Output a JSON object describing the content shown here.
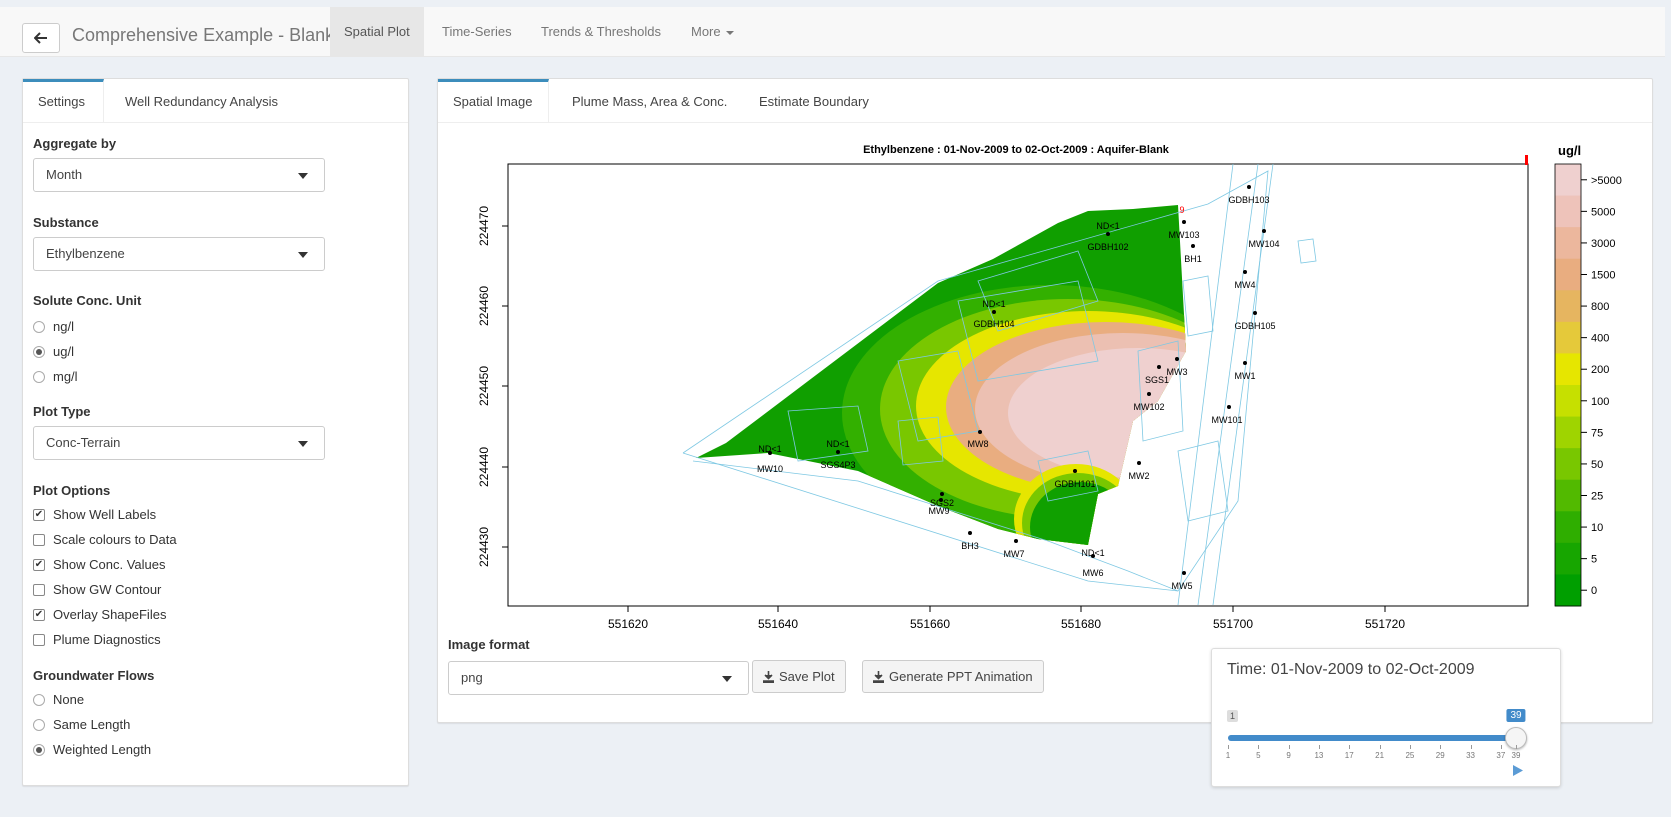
{
  "app": {
    "title": "Comprehensive Example - Blank"
  },
  "nav": {
    "tabs": [
      "Spatial Plot",
      "Time-Series",
      "Trends & Thresholds",
      "More"
    ]
  },
  "sidebar": {
    "tabs": [
      "Settings",
      "Well Redundancy Analysis"
    ],
    "aggregate_label": "Aggregate by",
    "aggregate_value": "Month",
    "substance_label": "Substance",
    "substance_value": "Ethylbenzene",
    "unit_label": "Solute Conc. Unit",
    "units": [
      "ng/l",
      "ug/l",
      "mg/l"
    ],
    "unit_selected": "ug/l",
    "plot_type_label": "Plot Type",
    "plot_type_value": "Conc-Terrain",
    "options_label": "Plot Options",
    "options": [
      {
        "label": "Show Well Labels",
        "checked": true
      },
      {
        "label": "Scale colours to Data",
        "checked": false
      },
      {
        "label": "Show Conc. Values",
        "checked": true
      },
      {
        "label": "Show GW Contour",
        "checked": false
      },
      {
        "label": "Overlay ShapeFiles",
        "checked": true
      },
      {
        "label": "Plume Diagnostics",
        "checked": false
      }
    ],
    "gw_label": "Groundwater Flows",
    "gw_options": [
      "None",
      "Same Length",
      "Weighted Length"
    ],
    "gw_selected": "Weighted Length"
  },
  "main": {
    "tabs": [
      "Spatial Image",
      "Plume Mass, Area & Conc.",
      "Estimate Boundary"
    ],
    "plot_title": "Ethylbenzene  : 01-Nov-2009 to 02-Oct-2009 : Aquifer-Blank",
    "x_ticks": [
      "551620",
      "551640",
      "551660",
      "551680",
      "551700",
      "551720"
    ],
    "y_ticks": [
      "224470",
      "224460",
      "224450",
      "224440",
      "224430"
    ],
    "legend_title": "ug/l",
    "legend_labels": [
      ">5000",
      "5000",
      "3000",
      "1500",
      "800",
      "400",
      "200",
      "100",
      "75",
      "50",
      "25",
      "10",
      "5",
      "0"
    ],
    "legend_colors": [
      "#efd0cf",
      "#eec3ba",
      "#ecb79d",
      "#e9ad80",
      "#e6b560",
      "#e5c93a",
      "#e6e600",
      "#c6e000",
      "#9fd400",
      "#79c700",
      "#52ba00",
      "#2fae00",
      "#17a600",
      "#009f00"
    ],
    "wells": [
      {
        "name": "GDBH103",
        "conc": ""
      },
      {
        "name": "MW104",
        "conc": ""
      },
      {
        "name": "MW103",
        "conc": "9"
      },
      {
        "name": "BH1",
        "conc": ""
      },
      {
        "name": "GDBH102",
        "conc": "ND<1"
      },
      {
        "name": "MW4",
        "conc": ""
      },
      {
        "name": "GDBH105",
        "conc": ""
      },
      {
        "name": "GDBH104",
        "conc": "ND<1"
      },
      {
        "name": "MW3",
        "conc": ""
      },
      {
        "name": "SGS1",
        "conc": ""
      },
      {
        "name": "MW1",
        "conc": ""
      },
      {
        "name": "MW102",
        "conc": ""
      },
      {
        "name": "MW101",
        "conc": ""
      },
      {
        "name": "MW8",
        "conc": ""
      },
      {
        "name": "MW10",
        "conc": "ND<1"
      },
      {
        "name": "SGS4P3",
        "conc": "ND<1"
      },
      {
        "name": "GDBH101",
        "conc": ""
      },
      {
        "name": "MW2",
        "conc": ""
      },
      {
        "name": "SGS2",
        "conc": ""
      },
      {
        "name": "MW9",
        "conc": ""
      },
      {
        "name": "BH3",
        "conc": ""
      },
      {
        "name": "MW7",
        "conc": ""
      },
      {
        "name": "MW6",
        "conc": "ND<1"
      },
      {
        "name": "MW5",
        "conc": ""
      }
    ],
    "image_format_label": "Image format",
    "image_format_value": "png",
    "save_label": "Save Plot",
    "ppt_label": "Generate PPT Animation"
  },
  "time": {
    "title": "Time: 01-Nov-2009 to 02-Oct-2009",
    "min_label": "1",
    "value_label": "39",
    "value": 39,
    "max": 39,
    "ticks": [
      "1",
      "5",
      "9",
      "13",
      "17",
      "21",
      "25",
      "29",
      "33",
      "37",
      "39"
    ]
  },
  "icons": {
    "back": "arrow-left-icon",
    "download": "download-icon",
    "play": "play-icon"
  }
}
